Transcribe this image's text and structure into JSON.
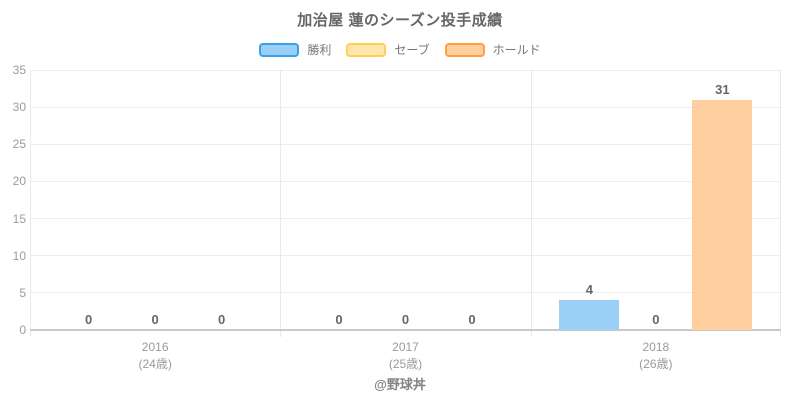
{
  "chart_data": {
    "type": "bar",
    "title": "加治屋 蓮のシーズン投手成績",
    "categories": [
      {
        "year": "2016",
        "age": "(24歳)"
      },
      {
        "year": "2017",
        "age": "(25歳)"
      },
      {
        "year": "2018",
        "age": "(26歳)"
      }
    ],
    "series": [
      {
        "name": "勝利",
        "values": [
          0,
          0,
          4
        ],
        "fill": "#9ad0f5",
        "border": "#36a2eb"
      },
      {
        "name": "セーブ",
        "values": [
          0,
          0,
          0
        ],
        "fill": "#ffe6aa",
        "border": "#ffce56"
      },
      {
        "name": "ホールド",
        "values": [
          0,
          0,
          31
        ],
        "fill": "#ffcf9f",
        "border": "#ff9f40"
      }
    ],
    "ylabel": "",
    "xlabel": "",
    "ylim": [
      0,
      35
    ],
    "ytick_step": 5,
    "grid": true,
    "legend_position": "top",
    "value_labels": true,
    "grid_color": "#ededed",
    "axis_color": "#c9c9c9"
  },
  "footer": {
    "credit": "@野球丼"
  }
}
